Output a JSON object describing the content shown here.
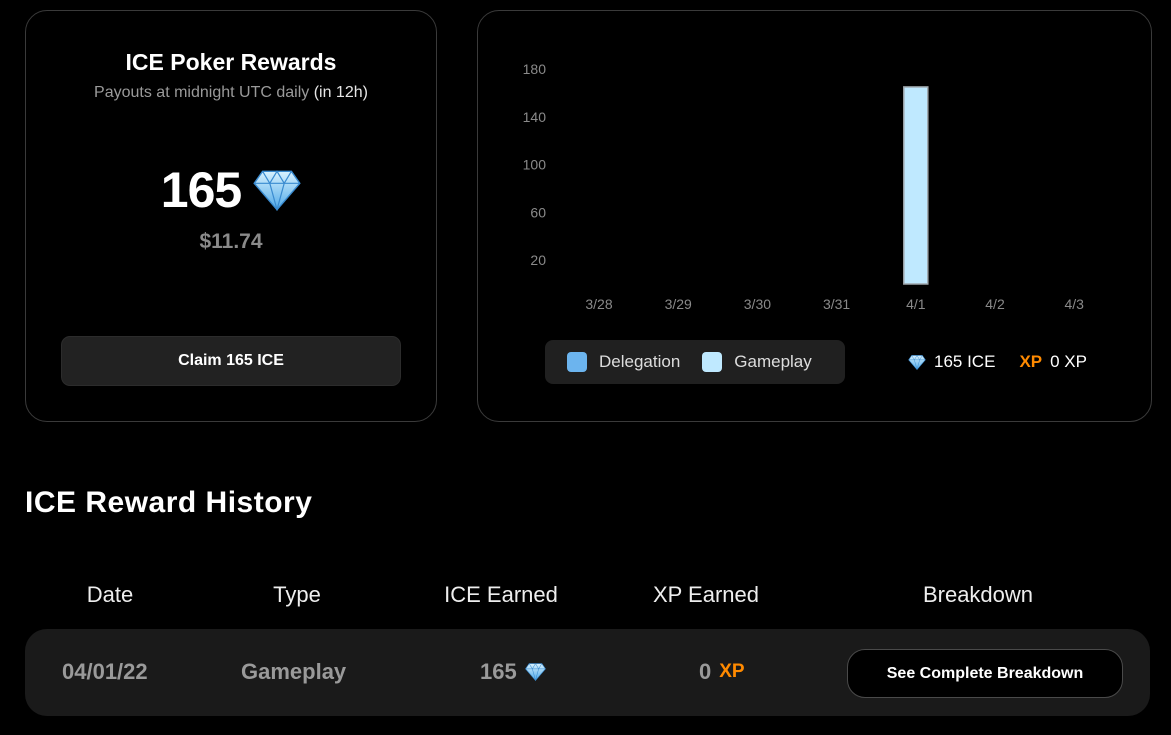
{
  "rewards": {
    "title": "ICE Poker Rewards",
    "subtitle": "Payouts at midnight UTC daily",
    "subtitle_highlight": "(in 12h)",
    "amount": "165",
    "usd_value": "$11.74",
    "claim_label": "Claim 165 ICE"
  },
  "chart_data": {
    "type": "bar",
    "categories": [
      "3/28",
      "3/29",
      "3/30",
      "3/31",
      "4/1",
      "4/2",
      "4/3"
    ],
    "series": [
      {
        "name": "Delegation",
        "values": [
          0,
          0,
          0,
          0,
          0,
          0,
          0
        ]
      },
      {
        "name": "Gameplay",
        "values": [
          0,
          0,
          0,
          0,
          165,
          0,
          0
        ]
      }
    ],
    "y_ticks": [
      20,
      60,
      100,
      140,
      180
    ],
    "ylim": [
      0,
      180
    ],
    "stacked": true,
    "grid": false,
    "legend_position": "bottom-left",
    "colors": {
      "Delegation": "#6cb4ee",
      "Gameplay": "#bfe9ff",
      "bar_stroke": "#9fa7ad",
      "tick": "#8a8a8a"
    }
  },
  "legend": {
    "items": [
      {
        "label": "Delegation",
        "color": "#6cb4ee"
      },
      {
        "label": "Gameplay",
        "color": "#bfe9ff"
      }
    ],
    "ice_total": "165 ICE",
    "xp_label": "XP",
    "xp_total": "0 XP"
  },
  "history": {
    "title": "ICE Reward History",
    "columns": [
      "Date",
      "Type",
      "ICE Earned",
      "XP Earned",
      "Breakdown"
    ],
    "rows": [
      {
        "date": "04/01/22",
        "type": "Gameplay",
        "ice": "165",
        "xp": "0",
        "xp_label": "XP",
        "action": "See Complete Breakdown"
      }
    ]
  },
  "icons": {
    "ice": "diamond-icon"
  }
}
